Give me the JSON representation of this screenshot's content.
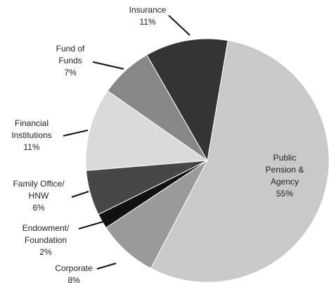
{
  "chart_data": {
    "type": "pie",
    "categories": [
      [
        "Public",
        "Pension &",
        "Agency"
      ],
      [
        "Corporate"
      ],
      [
        "Endowment/",
        "Foundation"
      ],
      [
        "Family Office/",
        "HNW"
      ],
      [
        "Financial",
        "Institutions"
      ],
      [
        "Fund of",
        "Funds"
      ],
      [
        "Insurance"
      ]
    ],
    "values": [
      55,
      8,
      2,
      6,
      11,
      7,
      11
    ],
    "value_labels": [
      "55%",
      "8%",
      "2%",
      "6%",
      "11%",
      "7%",
      "11%"
    ],
    "colors": [
      "#c9c9c9",
      "#9a9a9a",
      "#111111",
      "#474747",
      "#dadada",
      "#878787",
      "#343434"
    ]
  }
}
